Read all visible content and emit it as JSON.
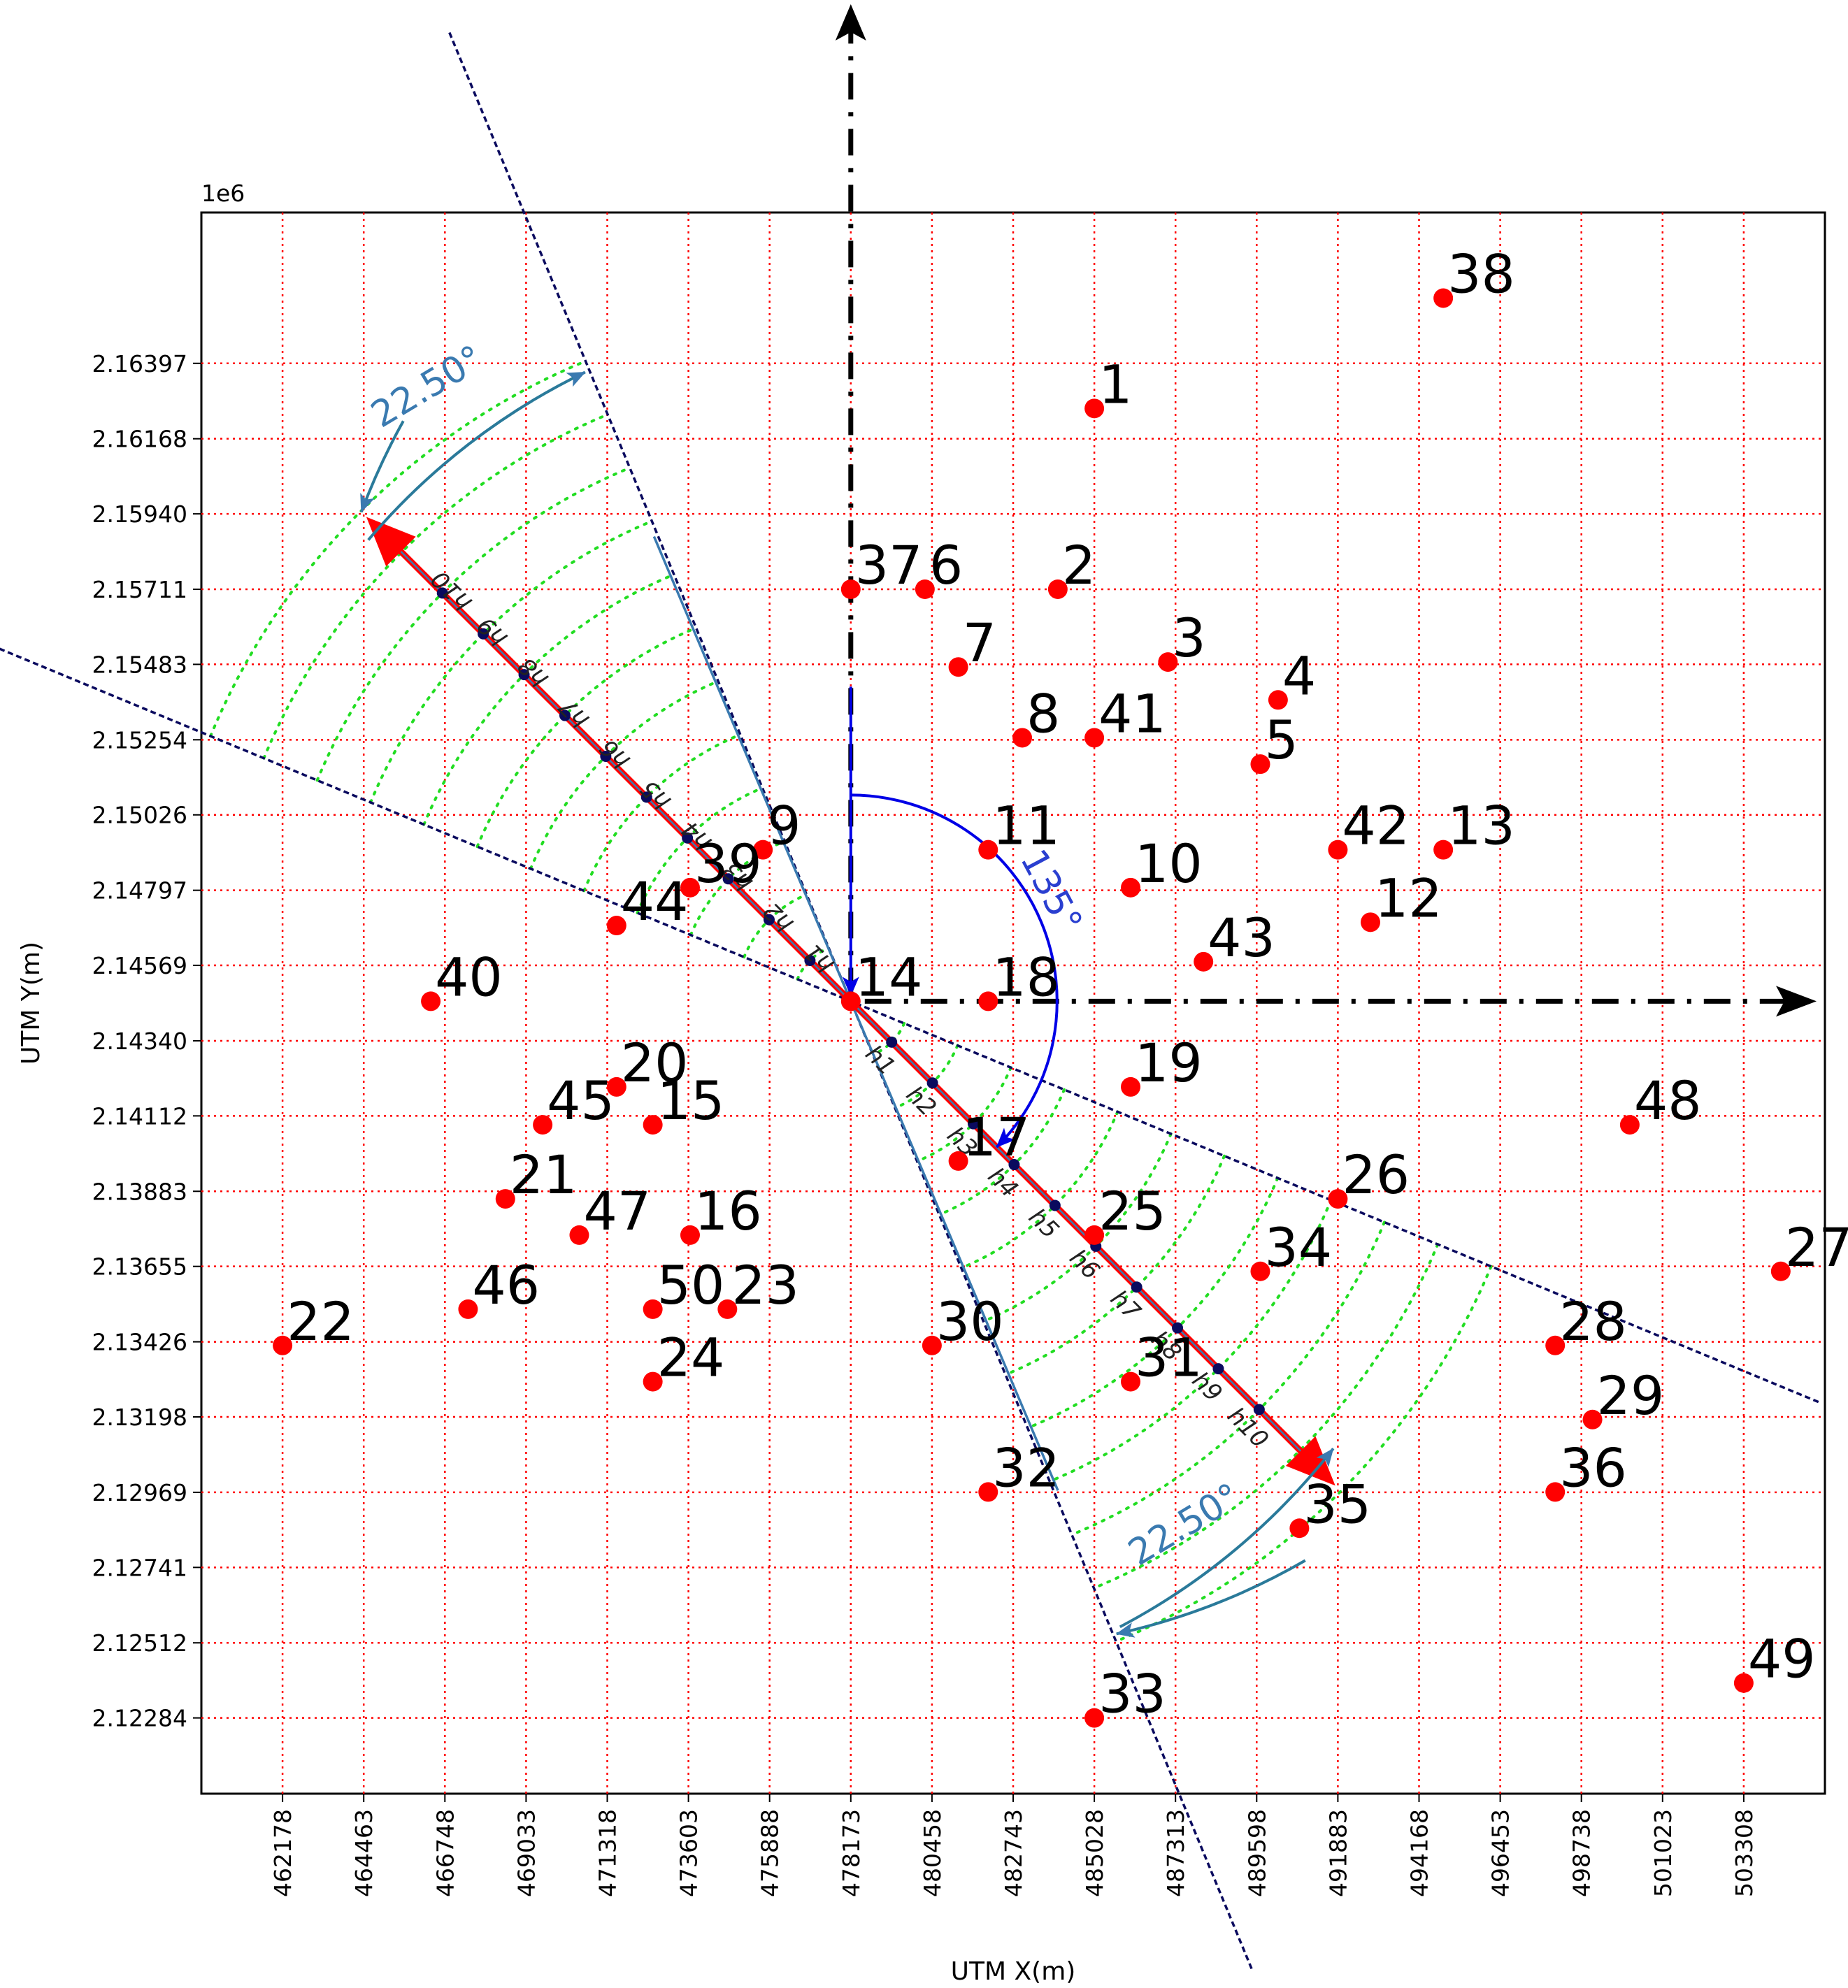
{
  "chart_data": {
    "type": "scatter",
    "xlabel": "UTM X(m)",
    "ylabel": "UTM Y(m)",
    "y_offset_label": "1e6",
    "xlim": [
      459893,
      505593
    ],
    "ylim": [
      2.12054,
      2.16855
    ],
    "grid": true,
    "x_ticks": [
      "462178",
      "464463",
      "466748",
      "469033",
      "471318",
      "473603",
      "475888",
      "478173",
      "480458",
      "482743",
      "485028",
      "487313",
      "489598",
      "491883",
      "494168",
      "496453",
      "498738",
      "501023",
      "503308"
    ],
    "y_ticks": [
      "2.16397",
      "2.16168",
      "2.15940",
      "2.15711",
      "2.15483",
      "2.15254",
      "2.15026",
      "2.14797",
      "2.14569",
      "2.14340",
      "2.14112",
      "2.13883",
      "2.13655",
      "2.13426",
      "2.13198",
      "2.12969",
      "2.12741",
      "2.12512",
      "2.12284"
    ],
    "points": [
      {
        "label": "1",
        "x": 485028,
        "y": 2.1626
      },
      {
        "label": "2",
        "x": 484000,
        "y": 2.15711
      },
      {
        "label": "3",
        "x": 487100,
        "y": 2.1549
      },
      {
        "label": "4",
        "x": 490200,
        "y": 2.15375
      },
      {
        "label": "5",
        "x": 489700,
        "y": 2.1518
      },
      {
        "label": "6",
        "x": 480260,
        "y": 2.15711
      },
      {
        "label": "7",
        "x": 481200,
        "y": 2.15475
      },
      {
        "label": "8",
        "x": 483000,
        "y": 2.1526
      },
      {
        "label": "9",
        "x": 475700,
        "y": 2.1492
      },
      {
        "label": "10",
        "x": 486050,
        "y": 2.14805
      },
      {
        "label": "11",
        "x": 482040,
        "y": 2.1492
      },
      {
        "label": "12",
        "x": 492800,
        "y": 2.147
      },
      {
        "label": "13",
        "x": 494850,
        "y": 2.1492
      },
      {
        "label": "14",
        "x": 478173,
        "y": 2.1446
      },
      {
        "label": "15",
        "x": 472600,
        "y": 2.14085
      },
      {
        "label": "16",
        "x": 473650,
        "y": 2.1375
      },
      {
        "label": "17",
        "x": 481200,
        "y": 2.13975
      },
      {
        "label": "18",
        "x": 482040,
        "y": 2.1446
      },
      {
        "label": "19",
        "x": 486050,
        "y": 2.142
      },
      {
        "label": "20",
        "x": 471580,
        "y": 2.142
      },
      {
        "label": "21",
        "x": 468450,
        "y": 2.1386
      },
      {
        "label": "22",
        "x": 462178,
        "y": 2.13415
      },
      {
        "label": "23",
        "x": 474700,
        "y": 2.13525
      },
      {
        "label": "24",
        "x": 472600,
        "y": 2.13305
      },
      {
        "label": "25",
        "x": 485028,
        "y": 2.1375
      },
      {
        "label": "26",
        "x": 491883,
        "y": 2.1386
      },
      {
        "label": "27",
        "x": 504350,
        "y": 2.1364
      },
      {
        "label": "28",
        "x": 498000,
        "y": 2.13415
      },
      {
        "label": "29",
        "x": 499050,
        "y": 2.1319
      },
      {
        "label": "30",
        "x": 480458,
        "y": 2.13415
      },
      {
        "label": "31",
        "x": 486050,
        "y": 2.13305
      },
      {
        "label": "32",
        "x": 482040,
        "y": 2.1297
      },
      {
        "label": "33",
        "x": 485028,
        "y": 2.12284
      },
      {
        "label": "34",
        "x": 489700,
        "y": 2.1364
      },
      {
        "label": "35",
        "x": 490800,
        "y": 2.1286
      },
      {
        "label": "36",
        "x": 498000,
        "y": 2.1297
      },
      {
        "label": "37",
        "x": 478173,
        "y": 2.15711
      },
      {
        "label": "38",
        "x": 494850,
        "y": 2.16595
      },
      {
        "label": "39",
        "x": 473650,
        "y": 2.14805
      },
      {
        "label": "40",
        "x": 466350,
        "y": 2.1446
      },
      {
        "label": "41",
        "x": 485028,
        "y": 2.1526
      },
      {
        "label": "42",
        "x": 491883,
        "y": 2.1492
      },
      {
        "label": "43",
        "x": 488100,
        "y": 2.1458
      },
      {
        "label": "44",
        "x": 471580,
        "y": 2.1469
      },
      {
        "label": "45",
        "x": 469500,
        "y": 2.14085
      },
      {
        "label": "46",
        "x": 467400,
        "y": 2.13525
      },
      {
        "label": "47",
        "x": 470530,
        "y": 2.1375
      },
      {
        "label": "48",
        "x": 500100,
        "y": 2.14085
      },
      {
        "label": "49",
        "x": 503308,
        "y": 2.1239
      },
      {
        "label": "50",
        "x": 472600,
        "y": 2.13525
      }
    ],
    "direction_labels": [
      "h1",
      "h2",
      "h3",
      "h4",
      "h5",
      "h6",
      "h7",
      "h8",
      "h9",
      "h10"
    ],
    "angle_main": "135°",
    "angle_spread_top": "22.50°",
    "angle_spread_bottom": "22.50°"
  }
}
